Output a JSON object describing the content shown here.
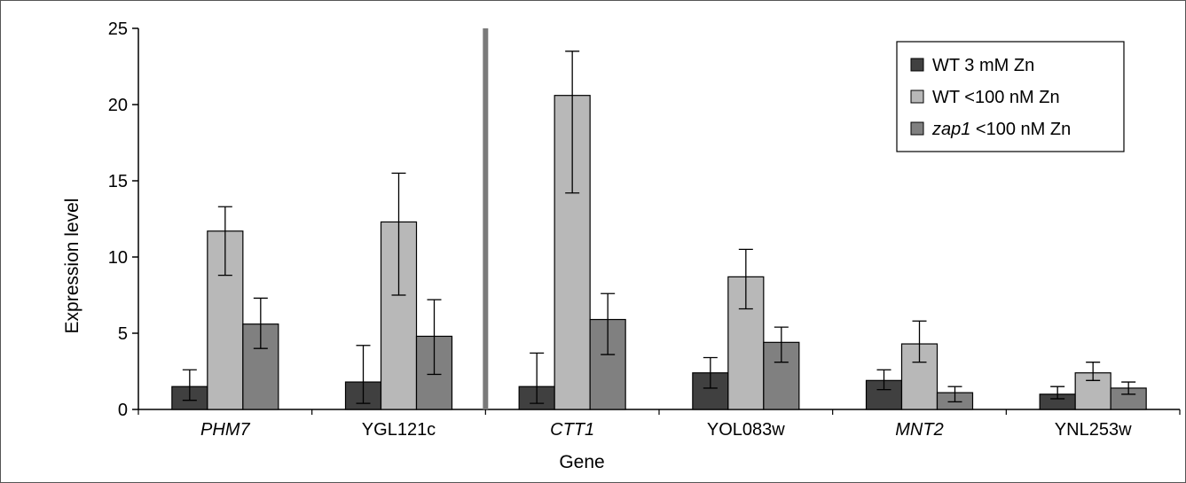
{
  "chart_data": {
    "type": "bar",
    "title": "",
    "xlabel": "Gene",
    "ylabel": "Expression level",
    "ylim": [
      0,
      25
    ],
    "yticks": [
      0,
      5,
      10,
      15,
      20,
      25
    ],
    "grid": false,
    "legend_position": "top-right",
    "categories": [
      {
        "label": "PHM7",
        "italic": true
      },
      {
        "label": "YGL121c",
        "italic": false
      },
      {
        "label": "CTT1",
        "italic": true
      },
      {
        "label": "YOL083w",
        "italic": false
      },
      {
        "label": "MNT2",
        "italic": true
      },
      {
        "label": "YNL253w",
        "italic": false
      }
    ],
    "group_divider_after_index": 1,
    "series": [
      {
        "name": "WT 3 mM Zn",
        "name_parts": [
          {
            "text": "WT 3 mM Zn",
            "italic": false
          }
        ],
        "color": "#404040",
        "values": [
          1.5,
          1.8,
          1.5,
          2.4,
          1.9,
          1.0
        ],
        "error_low": [
          0.6,
          0.4,
          0.4,
          1.4,
          1.3,
          0.7
        ],
        "error_high": [
          2.6,
          4.2,
          3.7,
          3.4,
          2.6,
          1.5
        ]
      },
      {
        "name": "WT <100 nM Zn",
        "name_parts": [
          {
            "text": "WT <100 nM Zn",
            "italic": false
          }
        ],
        "color": "#b8b8b8",
        "values": [
          11.7,
          12.3,
          20.6,
          8.7,
          4.3,
          2.4
        ],
        "error_low": [
          8.8,
          7.5,
          14.2,
          6.6,
          3.1,
          1.9
        ],
        "error_high": [
          13.3,
          15.5,
          23.5,
          10.5,
          5.8,
          3.1
        ]
      },
      {
        "name": "zap1 <100 nM Zn",
        "name_parts": [
          {
            "text": "zap1",
            "italic": true
          },
          {
            "text": " <100 nM Zn",
            "italic": false
          }
        ],
        "color": "#808080",
        "values": [
          5.6,
          4.8,
          5.9,
          4.4,
          1.1,
          1.4
        ],
        "error_low": [
          4.0,
          2.3,
          3.6,
          3.1,
          0.5,
          1.0
        ],
        "error_high": [
          7.3,
          7.2,
          7.6,
          5.4,
          1.5,
          1.8
        ]
      }
    ]
  }
}
